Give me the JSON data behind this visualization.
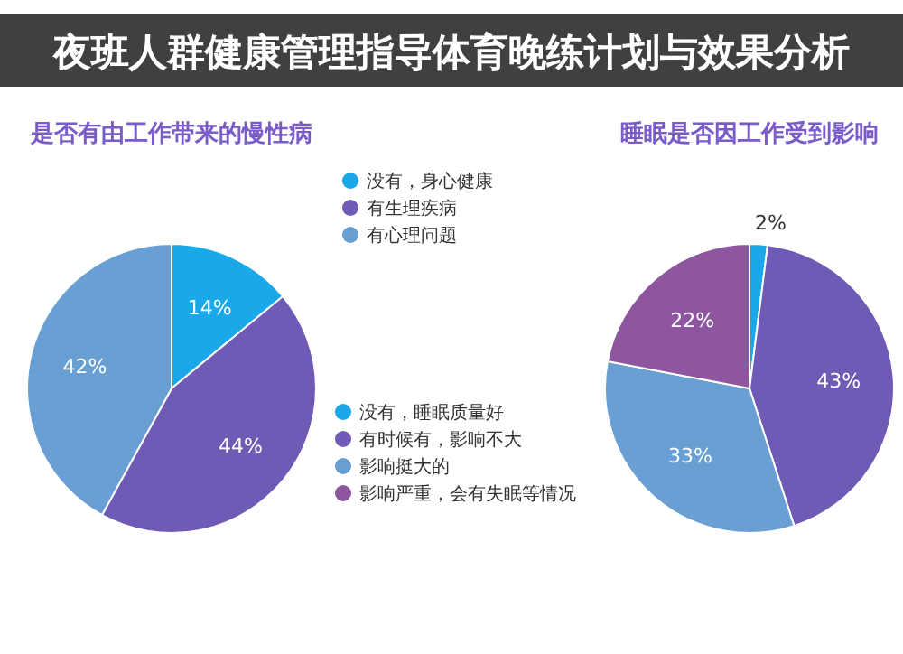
{
  "chart_data": [
    {
      "type": "pie",
      "title": "是否有由工作带来的慢性病",
      "annotations": [
        "夜班人群健康管理指导体育晚练计划与效果分析"
      ],
      "categories": [
        "没有，身心健康",
        "有生理疾病",
        "有心理问题"
      ],
      "values": [
        14,
        44,
        42
      ],
      "colors": [
        "#1aa9e8",
        "#6f5bb5",
        "#6a9fd4"
      ],
      "value_labels": [
        "14%",
        "44%",
        "42%"
      ],
      "legend": "top right"
    },
    {
      "type": "pie",
      "title": "睡眠是否因工作受到影响",
      "categories": [
        "没有，睡眠质量好",
        "有时候有，影响不大",
        "影响挺大的",
        "影响严重，会有失眠等情况"
      ],
      "values": [
        2,
        43,
        33,
        22
      ],
      "colors": [
        "#1aa9e8",
        "#6f5bb5",
        "#6a9fd4",
        "#8e55a0"
      ],
      "value_labels": [
        "2%",
        "43%",
        "33%",
        "22%"
      ],
      "legend": "bottom left"
    }
  ]
}
